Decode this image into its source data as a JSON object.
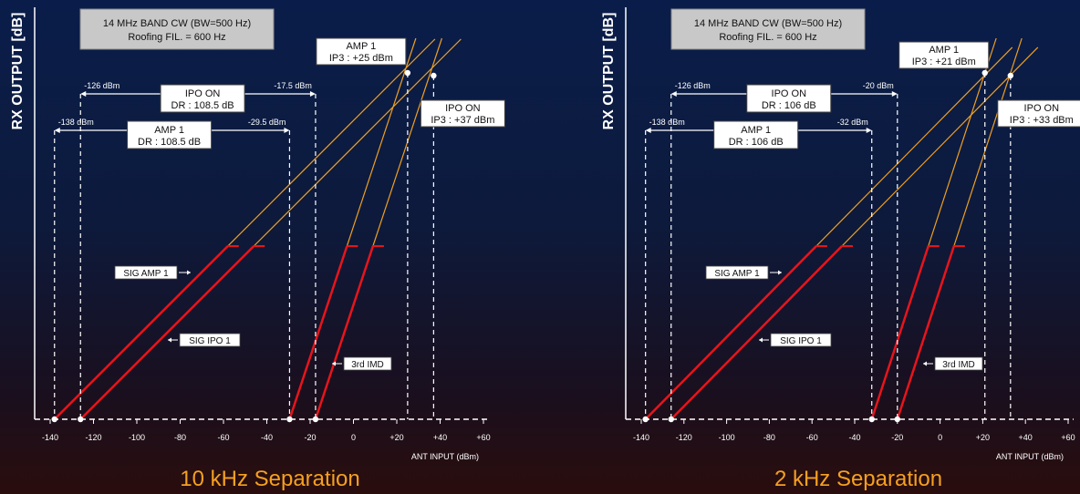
{
  "colors": {
    "sig_red": "#e8141c",
    "imd_orange": "#f0a020",
    "axis_white": "#ffffff",
    "title_orange": "#f5a020",
    "header_box": "#c8c8c8"
  },
  "chart_data": [
    {
      "type": "line",
      "title": "10 kHz Separation",
      "ylabel": "RX OUTPUT [dB]",
      "xlabel": "ANT INPUT (dBm)",
      "xlim": [
        -140,
        60
      ],
      "xticks": [
        -140,
        -120,
        -100,
        -80,
        -60,
        -40,
        -20,
        0,
        20,
        40,
        60
      ],
      "xtick_labels": [
        "-140",
        "-120",
        "-100",
        "-80",
        "-60",
        "-40",
        "-20",
        "0",
        "+20",
        "+40",
        "+60"
      ],
      "header": {
        "line1": "14 MHz BAND CW (BW=500 Hz)",
        "line2": "Roofing FIL. = 600 Hz"
      },
      "series": [
        {
          "name": "SIG AMP 1",
          "x": [
            -138,
            -58
          ],
          "y": [
            0,
            72
          ]
        },
        {
          "name": "SIG IPO 1",
          "x": [
            -126,
            -46
          ],
          "y": [
            0,
            72
          ]
        },
        {
          "name": "AMP 1 IMD",
          "x": [
            -29.5,
            -3
          ],
          "y": [
            0,
            72
          ]
        },
        {
          "name": "IPO ON IMD",
          "x": [
            -17.5,
            9
          ],
          "y": [
            0,
            72
          ]
        }
      ],
      "ip3": [
        {
          "label1": "AMP 1",
          "label2": "IP3 : +25 dBm",
          "x": 25
        },
        {
          "label1": "IPO ON",
          "label2": "IP3 : +37 dBm",
          "x": 37
        }
      ],
      "dr_boxes": [
        {
          "left_label": "-126 dBm",
          "right_label": "-17.5 dBm",
          "title": "IPO ON",
          "value": "DR : 108.5 dB",
          "x1": -126,
          "x2": -17.5
        },
        {
          "left_label": "-138 dBm",
          "right_label": "-29.5 dBm",
          "title": "AMP 1",
          "value": "DR : 108.5 dB",
          "x1": -138,
          "x2": -29.5
        }
      ],
      "annotations": {
        "sig_amp": "SIG AMP 1",
        "sig_ipo": "SIG IPO 1",
        "imd": "3rd IMD"
      }
    },
    {
      "type": "line",
      "title": "2 kHz Separation",
      "ylabel": "RX OUTPUT [dB]",
      "xlabel": "ANT INPUT (dBm)",
      "xlim": [
        -140,
        60
      ],
      "xticks": [
        -140,
        -120,
        -100,
        -80,
        -60,
        -40,
        -20,
        0,
        20,
        40,
        60
      ],
      "xtick_labels": [
        "-140",
        "-120",
        "-100",
        "-80",
        "-60",
        "-40",
        "-20",
        "0",
        "+20",
        "+40",
        "+60"
      ],
      "header": {
        "line1": "14 MHz BAND CW (BW=500 Hz)",
        "line2": "Roofing FIL. = 600 Hz"
      },
      "series": [
        {
          "name": "SIG AMP 1",
          "x": [
            -138,
            -58
          ],
          "y": [
            0,
            72
          ]
        },
        {
          "name": "SIG IPO 1",
          "x": [
            -126,
            -46
          ],
          "y": [
            0,
            72
          ]
        },
        {
          "name": "AMP 1 IMD",
          "x": [
            -32,
            -5.5
          ],
          "y": [
            0,
            72
          ]
        },
        {
          "name": "IPO ON IMD",
          "x": [
            -20,
            6.5
          ],
          "y": [
            0,
            72
          ]
        }
      ],
      "ip3": [
        {
          "label1": "AMP 1",
          "label2": "IP3 : +21 dBm",
          "x": 21
        },
        {
          "label1": "IPO ON",
          "label2": "IP3 : +33 dBm",
          "x": 33
        }
      ],
      "dr_boxes": [
        {
          "left_label": "-126 dBm",
          "right_label": "-20 dBm",
          "title": "IPO ON",
          "value": "DR : 106 dB",
          "x1": -126,
          "x2": -20
        },
        {
          "left_label": "-138 dBm",
          "right_label": "-32 dBm",
          "title": "AMP 1",
          "value": "DR : 106 dB",
          "x1": -138,
          "x2": -32
        }
      ],
      "annotations": {
        "sig_amp": "SIG AMP 1",
        "sig_ipo": "SIG IPO 1",
        "imd": "3rd IMD"
      }
    }
  ]
}
